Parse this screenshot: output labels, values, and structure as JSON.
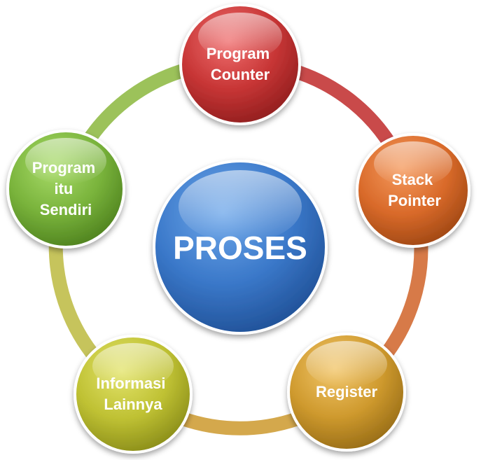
{
  "center": {
    "label": "PROSES",
    "color": "#3a78c9"
  },
  "nodes": [
    {
      "lines": [
        "Program",
        "Counter"
      ],
      "color": "#c73535"
    },
    {
      "lines": [
        "Stack",
        "Pointer"
      ],
      "color": "#d96a2a"
    },
    {
      "lines": [
        "Register"
      ],
      "color": "#cf9a2e"
    },
    {
      "lines": [
        "Informasi",
        "Lainnya"
      ],
      "color": "#bfc133"
    },
    {
      "lines": [
        "Program",
        "itu",
        "Sendiri"
      ],
      "color": "#79b33b"
    }
  ],
  "ring_colors": [
    "#c94a4a",
    "#d77a48",
    "#d4a84c",
    "#c6c45c",
    "#9cc25a"
  ]
}
